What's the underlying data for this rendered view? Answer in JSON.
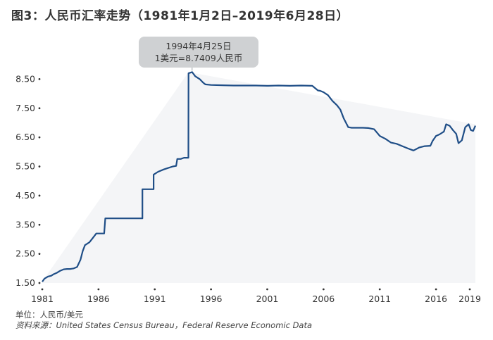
{
  "title": "图3：人民币汇率走势（1981年1月2日–2019年6月28日）",
  "annotation": {
    "line1": "1994年4月25日",
    "line2": "1美元=8.7409人民币"
  },
  "footer": {
    "unit": "单位：人民币/美元",
    "source": "资料来源：United States Census Bureau，Federal Reserve Economic Data"
  },
  "colors": {
    "line": "#1f4e87",
    "callout_bg": "#cfd1d3",
    "area_fill": "#f4f5f7"
  },
  "chart_data": {
    "type": "line",
    "title": "图3：人民币汇率走势（1981年1月2日–2019年6月28日）",
    "ylabel": "单位：人民币/美元",
    "xlim": [
      1981.0,
      2019.5
    ],
    "ylim": [
      1.5,
      8.8
    ],
    "yticks": [
      1.5,
      2.5,
      3.5,
      4.5,
      5.5,
      6.5,
      7.5,
      8.5
    ],
    "ytick_labels": [
      "1.50",
      "2.50",
      "3.50",
      "4.50",
      "5.50",
      "6.50",
      "7.50",
      "8.50"
    ],
    "xticks": [
      1981,
      1986,
      1991,
      1996,
      2001,
      2006,
      2011,
      2016,
      2019
    ],
    "xtick_labels": [
      "1981",
      "1986",
      "1991",
      "1996",
      "2001",
      "2006",
      "2011",
      "2016",
      "2019"
    ],
    "grid": false,
    "series": [
      {
        "x": [
          1981.0,
          1981.2,
          1981.5,
          1981.8,
          1982.0,
          1982.3,
          1982.6,
          1982.9,
          1983.2,
          1983.5,
          1983.8,
          1984.1,
          1984.4,
          1984.6,
          1984.8,
          1985.0,
          1985.2,
          1985.5,
          1985.8,
          1985.9,
          1986.3,
          1986.5,
          1986.6,
          1986.6,
          1987.0,
          1988.0,
          1989.0,
          1989.9,
          1989.9,
          1990.5,
          1990.9,
          1990.9,
          1991.3,
          1991.8,
          1992.2,
          1992.6,
          1992.9,
          1993.0,
          1993.3,
          1993.6,
          1993.9,
          1993.99,
          1994.0,
          1994.32,
          1994.6,
          1995.0,
          1995.3,
          1995.5,
          1996.0,
          1997.0,
          1998.0,
          1999.0,
          2000.0,
          2001.0,
          2002.0,
          2003.0,
          2004.0,
          2005.0,
          2005.5,
          2005.7,
          2006.0,
          2006.4,
          2006.8,
          2007.2,
          2007.5,
          2007.8,
          2008.2,
          2008.5,
          2009.0,
          2009.5,
          2010.0,
          2010.5,
          2011.0,
          2011.5,
          2012.0,
          2012.5,
          2013.0,
          2013.5,
          2014.0,
          2014.5,
          2015.0,
          2015.5,
          2015.7,
          2016.0,
          2016.3,
          2016.7,
          2016.9,
          2017.2,
          2017.5,
          2017.8,
          2018.0,
          2018.3,
          2018.6,
          2018.9,
          2019.1,
          2019.3,
          2019.5
        ],
        "y": [
          1.54,
          1.65,
          1.72,
          1.75,
          1.8,
          1.85,
          1.92,
          1.97,
          1.98,
          1.98,
          2.0,
          2.05,
          2.3,
          2.6,
          2.8,
          2.85,
          2.9,
          3.05,
          3.2,
          3.2,
          3.2,
          3.2,
          3.72,
          3.72,
          3.72,
          3.72,
          3.72,
          3.72,
          4.72,
          4.72,
          4.72,
          5.22,
          5.32,
          5.4,
          5.45,
          5.5,
          5.52,
          5.76,
          5.76,
          5.8,
          5.8,
          5.8,
          8.7,
          8.7409,
          8.6,
          8.5,
          8.38,
          8.32,
          8.3,
          8.29,
          8.28,
          8.28,
          8.28,
          8.27,
          8.28,
          8.27,
          8.28,
          8.27,
          8.11,
          8.1,
          8.05,
          7.95,
          7.75,
          7.6,
          7.45,
          7.15,
          6.85,
          6.83,
          6.83,
          6.83,
          6.82,
          6.78,
          6.55,
          6.45,
          6.32,
          6.28,
          6.2,
          6.12,
          6.05,
          6.15,
          6.2,
          6.21,
          6.38,
          6.55,
          6.6,
          6.7,
          6.95,
          6.9,
          6.75,
          6.62,
          6.3,
          6.4,
          6.85,
          6.95,
          6.75,
          6.72,
          6.9
        ]
      }
    ]
  }
}
